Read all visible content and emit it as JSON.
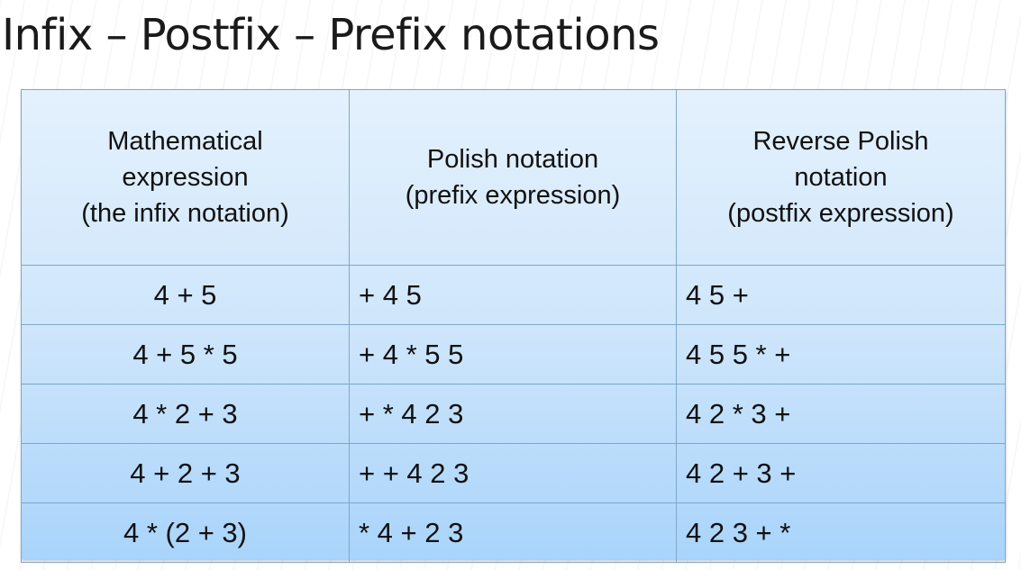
{
  "title": "Infix – Postfix – Prefix notations",
  "table": {
    "headers": [
      {
        "lines": [
          "Mathematical",
          "expression",
          "(the infix notation)"
        ]
      },
      {
        "lines": [
          "Polish notation",
          "(prefix expression)"
        ]
      },
      {
        "lines": [
          "Reverse Polish",
          "notation",
          "(postfix expression)"
        ]
      }
    ],
    "rows": [
      {
        "infix": "4 + 5",
        "prefix": "+ 4 5",
        "postfix": "4 5 +"
      },
      {
        "infix": "4 + 5 * 5",
        "prefix": "+ 4 * 5 5",
        "postfix": "4 5 5 * +"
      },
      {
        "infix": "4 * 2 + 3",
        "prefix": "+ * 4 2 3",
        "postfix": "4 2 * 3 +"
      },
      {
        "infix": "4 + 2 + 3",
        "prefix": "+ + 4 2 3",
        "postfix": "4 2 + 3 +"
      },
      {
        "infix": "4 * (2 + 3)",
        "prefix": "* 4 + 2 3",
        "postfix": "4 2 3 + *"
      }
    ]
  },
  "colors": {
    "table_top": "#e4f1fd",
    "table_bottom": "#a9d4fb",
    "border": "#7fa7c8",
    "text": "#111111"
  }
}
